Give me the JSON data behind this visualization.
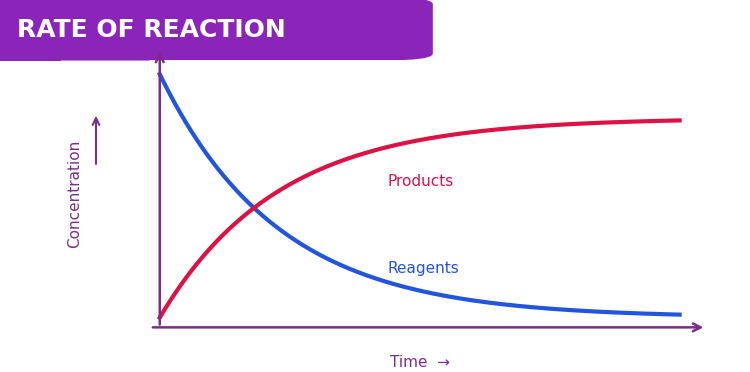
{
  "title": "RATE OF REACTION",
  "title_bg_color": "#8B24B8",
  "title_text_color": "#FFFFFF",
  "bg_color": "#FFFFFF",
  "axis_color": "#7B2D8B",
  "reagents_color": "#2255DD",
  "products_color": "#DD1144",
  "reagents_label": "Reagents",
  "products_label": "Products",
  "xlabel": "Time",
  "ylabel": "Concentration",
  "label_color_products": "#DD1144",
  "label_color_reagents": "#2255DD",
  "xlabel_color": "#7B2D8B",
  "ylabel_color": "#7B2D8B",
  "arrow_color": "#7B2D8B",
  "label_fontsize": 11,
  "axis_label_fontsize": 11,
  "title_fontsize": 18,
  "line_width": 3.0,
  "decay_rate": 0.55,
  "t_max": 8.0,
  "products_scale": 0.82
}
